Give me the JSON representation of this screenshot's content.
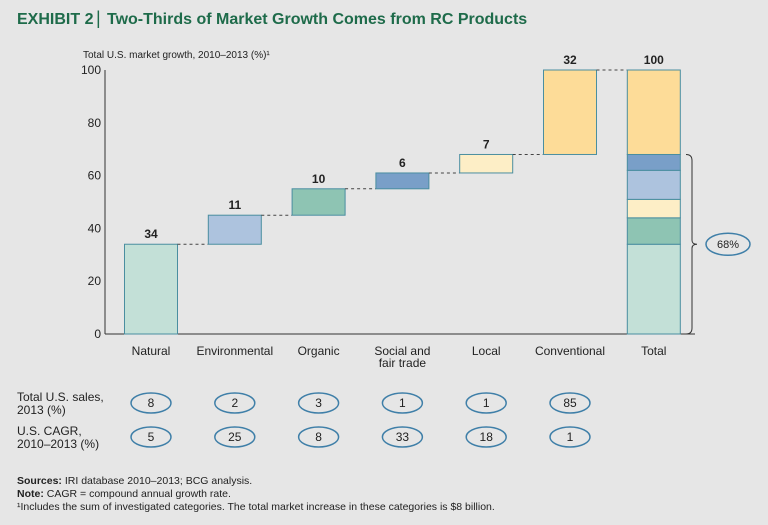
{
  "title": {
    "exhibit": "EXHIBIT 2",
    "separator": "|",
    "text": "Two-Thirds of Market Growth Comes from RC Products"
  },
  "colors": {
    "title": "#1e6b4a",
    "border": "#4a8ea0",
    "natural": "#c3e0d7",
    "environmental": "#adc3de",
    "organic": "#8ec4b3",
    "social": "#799fc8",
    "local": "#fdeec6",
    "conventional": "#fddc98"
  },
  "chart_data": {
    "type": "waterfall",
    "ylabel": "Total U.S. market growth, 2010–2013 (%)¹",
    "ylim": [
      0,
      100
    ],
    "yticks": [
      "0",
      "20",
      "40",
      "60",
      "80",
      "100"
    ],
    "categories": [
      "Natural",
      "Environmental",
      "Organic",
      "Social and fair trade",
      "Local",
      "Conventional",
      "Total"
    ],
    "category_lines": [
      [
        "Natural"
      ],
      [
        "Environmental"
      ],
      [
        "Organic"
      ],
      [
        "Social and",
        "fair trade"
      ],
      [
        "Local"
      ],
      [
        "Conventional"
      ],
      [
        "Total"
      ]
    ],
    "values": [
      34,
      11,
      10,
      6,
      7,
      32,
      100
    ],
    "value_labels": [
      "34",
      "11",
      "10",
      "6",
      "7",
      "32",
      "100"
    ],
    "total_stack_order": [
      "Natural",
      "Organic",
      "Local",
      "Environmental",
      "Social and fair trade",
      "Conventional"
    ],
    "bracket_label": "68%",
    "bracket_range": [
      0,
      68
    ]
  },
  "table": {
    "rows": [
      {
        "label_lines": [
          "Total U.S. sales,",
          "2013 (%)"
        ],
        "values": [
          "8",
          "2",
          "3",
          "1",
          "1",
          "85"
        ]
      },
      {
        "label_lines": [
          "U.S. CAGR,",
          "2010–2013 (%)"
        ],
        "values": [
          "5",
          "25",
          "8",
          "33",
          "18",
          "1"
        ]
      }
    ]
  },
  "footnotes": {
    "sources_label": "Sources:",
    "sources": " IRI database 2010–2013; BCG analysis.",
    "note_label": "Note:",
    "note": " CAGR = compound annual growth rate.",
    "footnote1": "¹Includes the sum of investigated categories. The total market increase in these categories is $8 billion."
  }
}
